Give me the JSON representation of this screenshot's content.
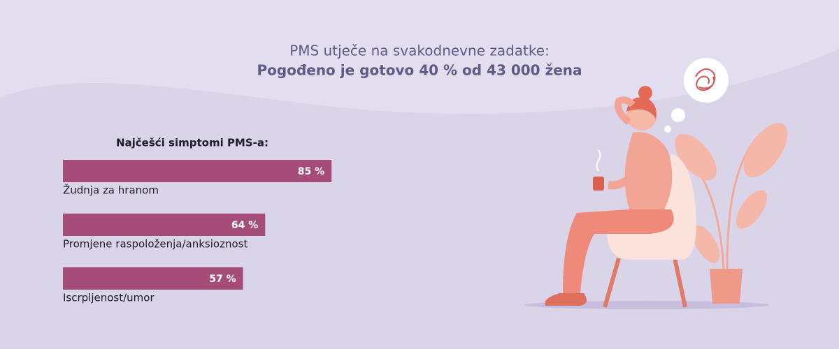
{
  "chart_data": {
    "type": "bar",
    "title": "PMS utječe na svakodnevne zadatke:",
    "subtitle": "Pogođeno je gotovo 40 % od 43 000 žena",
    "chart_title": "Najčešći simptomi PMS-a:",
    "categories": [
      "Žudnja za hranom",
      "Promjene raspoloženja/anksioznost",
      "Iscrpljenost/umor"
    ],
    "values": [
      85,
      64,
      57
    ],
    "value_labels": [
      "85 %",
      "64 %",
      "57 %"
    ],
    "color": "#a54d78"
  }
}
